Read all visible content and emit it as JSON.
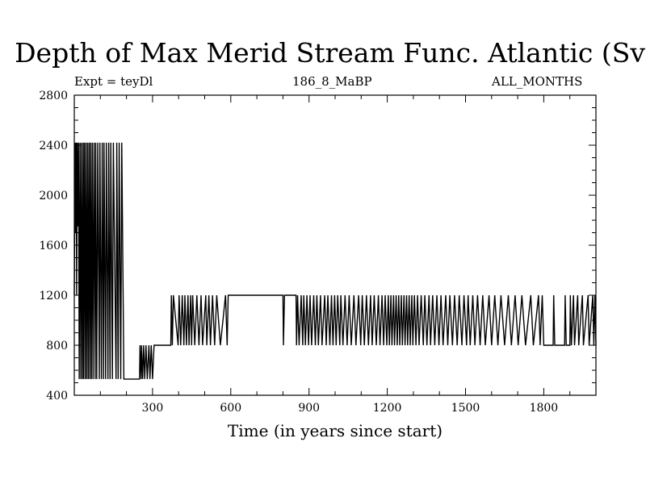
{
  "header": {
    "title": "Depth of Max Merid Stream Func. Atlantic (Sv)",
    "experiment": "Expt = teyDl",
    "run_id": "186_8_MaBP",
    "months": "ALL_MONTHS"
  },
  "chart_data": {
    "type": "line",
    "title": "Depth of Max Merid Stream Func. Atlantic (Sv)",
    "xlabel": "Time (in years since start)",
    "ylabel": "",
    "xlim": [
      0,
      2000
    ],
    "ylim": [
      400,
      2800
    ],
    "xticks": [
      300,
      600,
      900,
      1200,
      1500,
      1800
    ],
    "yticks": [
      400,
      800,
      1200,
      1600,
      2000,
      2400,
      2800
    ],
    "grid": false,
    "levels": [
      530,
      800,
      1200,
      2420
    ],
    "series": [
      {
        "color": "#000000",
        "points": [
          [
            0,
            1200
          ],
          [
            3,
            2420
          ],
          [
            5,
            1700
          ],
          [
            7,
            2420
          ],
          [
            9,
            1200
          ],
          [
            11,
            2420
          ],
          [
            13,
            1750
          ],
          [
            16,
            2420
          ],
          [
            19,
            530
          ],
          [
            22,
            2420
          ],
          [
            25,
            530
          ],
          [
            28,
            2420
          ],
          [
            31,
            530
          ],
          [
            34,
            2420
          ],
          [
            36,
            530
          ],
          [
            39,
            2420
          ],
          [
            42,
            530
          ],
          [
            45,
            2420
          ],
          [
            48,
            530
          ],
          [
            51,
            2420
          ],
          [
            54,
            530
          ],
          [
            57,
            2420
          ],
          [
            60,
            530
          ],
          [
            63,
            2420
          ],
          [
            66,
            530
          ],
          [
            69,
            2420
          ],
          [
            72,
            530
          ],
          [
            76,
            2420
          ],
          [
            80,
            530
          ],
          [
            82,
            2420
          ],
          [
            86,
            530
          ],
          [
            90,
            2420
          ],
          [
            96,
            530
          ],
          [
            98,
            2420
          ],
          [
            104,
            530
          ],
          [
            107,
            2420
          ],
          [
            112,
            530
          ],
          [
            114,
            2420
          ],
          [
            120,
            530
          ],
          [
            123,
            2420
          ],
          [
            129,
            530
          ],
          [
            132,
            2420
          ],
          [
            137,
            530
          ],
          [
            140,
            2420
          ],
          [
            146,
            530
          ],
          [
            150,
            2420
          ],
          [
            160,
            530
          ],
          [
            163,
            2420
          ],
          [
            168,
            530
          ],
          [
            172,
            2420
          ],
          [
            178,
            530
          ],
          [
            182,
            2420
          ],
          [
            190,
            530
          ],
          [
            250,
            530
          ],
          [
            252,
            800
          ],
          [
            256,
            530
          ],
          [
            258,
            800
          ],
          [
            262,
            530
          ],
          [
            266,
            800
          ],
          [
            270,
            530
          ],
          [
            275,
            800
          ],
          [
            280,
            530
          ],
          [
            286,
            800
          ],
          [
            290,
            530
          ],
          [
            295,
            800
          ],
          [
            300,
            530
          ],
          [
            306,
            800
          ],
          [
            370,
            800
          ],
          [
            372,
            1200
          ],
          [
            376,
            800
          ],
          [
            380,
            1200
          ],
          [
            398,
            800
          ],
          [
            402,
            1200
          ],
          [
            408,
            800
          ],
          [
            414,
            1200
          ],
          [
            420,
            800
          ],
          [
            424,
            1200
          ],
          [
            430,
            800
          ],
          [
            436,
            1200
          ],
          [
            440,
            800
          ],
          [
            446,
            1200
          ],
          [
            450,
            800
          ],
          [
            454,
            1200
          ],
          [
            462,
            800
          ],
          [
            470,
            1200
          ],
          [
            478,
            800
          ],
          [
            486,
            1200
          ],
          [
            492,
            800
          ],
          [
            504,
            1200
          ],
          [
            508,
            800
          ],
          [
            516,
            1200
          ],
          [
            522,
            800
          ],
          [
            530,
            1200
          ],
          [
            538,
            800
          ],
          [
            546,
            1200
          ],
          [
            560,
            800
          ],
          [
            580,
            1200
          ],
          [
            586,
            800
          ],
          [
            590,
            1200
          ],
          [
            800,
            1200
          ],
          [
            802,
            800
          ],
          [
            806,
            1200
          ],
          [
            850,
            1200
          ],
          [
            852,
            800
          ],
          [
            856,
            1200
          ],
          [
            862,
            800
          ],
          [
            870,
            1200
          ],
          [
            876,
            800
          ],
          [
            880,
            1200
          ],
          [
            886,
            800
          ],
          [
            892,
            1200
          ],
          [
            898,
            800
          ],
          [
            904,
            1200
          ],
          [
            910,
            800
          ],
          [
            918,
            1200
          ],
          [
            924,
            800
          ],
          [
            930,
            1200
          ],
          [
            936,
            800
          ],
          [
            944,
            1200
          ],
          [
            950,
            800
          ],
          [
            960,
            1200
          ],
          [
            966,
            800
          ],
          [
            972,
            1200
          ],
          [
            980,
            800
          ],
          [
            986,
            1200
          ],
          [
            992,
            800
          ],
          [
            998,
            1200
          ],
          [
            1004,
            800
          ],
          [
            1010,
            1200
          ],
          [
            1018,
            800
          ],
          [
            1022,
            1200
          ],
          [
            1030,
            800
          ],
          [
            1038,
            1200
          ],
          [
            1046,
            800
          ],
          [
            1054,
            1200
          ],
          [
            1062,
            800
          ],
          [
            1072,
            1200
          ],
          [
            1080,
            800
          ],
          [
            1090,
            1200
          ],
          [
            1098,
            800
          ],
          [
            1104,
            1200
          ],
          [
            1112,
            800
          ],
          [
            1120,
            1200
          ],
          [
            1128,
            800
          ],
          [
            1136,
            1200
          ],
          [
            1142,
            800
          ],
          [
            1150,
            1200
          ],
          [
            1158,
            800
          ],
          [
            1166,
            1200
          ],
          [
            1172,
            800
          ],
          [
            1180,
            1200
          ],
          [
            1186,
            800
          ],
          [
            1192,
            1200
          ],
          [
            1198,
            800
          ],
          [
            1204,
            1200
          ],
          [
            1208,
            800
          ],
          [
            1214,
            1200
          ],
          [
            1218,
            800
          ],
          [
            1224,
            1200
          ],
          [
            1228,
            800
          ],
          [
            1234,
            1200
          ],
          [
            1238,
            800
          ],
          [
            1244,
            1200
          ],
          [
            1248,
            800
          ],
          [
            1254,
            1200
          ],
          [
            1258,
            800
          ],
          [
            1264,
            1200
          ],
          [
            1268,
            800
          ],
          [
            1274,
            1200
          ],
          [
            1278,
            800
          ],
          [
            1284,
            1200
          ],
          [
            1288,
            800
          ],
          [
            1294,
            1200
          ],
          [
            1298,
            800
          ],
          [
            1304,
            1200
          ],
          [
            1310,
            800
          ],
          [
            1316,
            1200
          ],
          [
            1322,
            800
          ],
          [
            1330,
            1200
          ],
          [
            1338,
            800
          ],
          [
            1344,
            1200
          ],
          [
            1352,
            800
          ],
          [
            1360,
            1200
          ],
          [
            1366,
            800
          ],
          [
            1374,
            1200
          ],
          [
            1382,
            800
          ],
          [
            1390,
            1200
          ],
          [
            1398,
            800
          ],
          [
            1406,
            1200
          ],
          [
            1414,
            800
          ],
          [
            1424,
            1200
          ],
          [
            1432,
            800
          ],
          [
            1440,
            1200
          ],
          [
            1450,
            800
          ],
          [
            1458,
            1200
          ],
          [
            1468,
            800
          ],
          [
            1476,
            1200
          ],
          [
            1486,
            800
          ],
          [
            1494,
            1200
          ],
          [
            1504,
            800
          ],
          [
            1510,
            1200
          ],
          [
            1518,
            800
          ],
          [
            1528,
            1200
          ],
          [
            1536,
            800
          ],
          [
            1546,
            1200
          ],
          [
            1556,
            800
          ],
          [
            1566,
            1200
          ],
          [
            1576,
            800
          ],
          [
            1590,
            1200
          ],
          [
            1600,
            800
          ],
          [
            1612,
            1200
          ],
          [
            1624,
            800
          ],
          [
            1636,
            1200
          ],
          [
            1650,
            800
          ],
          [
            1664,
            1200
          ],
          [
            1676,
            800
          ],
          [
            1690,
            1200
          ],
          [
            1702,
            800
          ],
          [
            1716,
            1200
          ],
          [
            1730,
            800
          ],
          [
            1750,
            1200
          ],
          [
            1760,
            800
          ],
          [
            1780,
            1200
          ],
          [
            1786,
            800
          ],
          [
            1794,
            1200
          ],
          [
            1800,
            800
          ],
          [
            1836,
            800
          ],
          [
            1838,
            1200
          ],
          [
            1842,
            800
          ],
          [
            1880,
            800
          ],
          [
            1882,
            1200
          ],
          [
            1886,
            800
          ],
          [
            1900,
            800
          ],
          [
            1902,
            1200
          ],
          [
            1906,
            800
          ],
          [
            1914,
            1200
          ],
          [
            1918,
            800
          ],
          [
            1930,
            1200
          ],
          [
            1934,
            800
          ],
          [
            1948,
            1200
          ],
          [
            1952,
            800
          ],
          [
            1970,
            1200
          ],
          [
            1974,
            800
          ],
          [
            1988,
            1200
          ],
          [
            1992,
            800
          ],
          [
            1996,
            1200
          ],
          [
            2000,
            800
          ]
        ]
      }
    ]
  }
}
